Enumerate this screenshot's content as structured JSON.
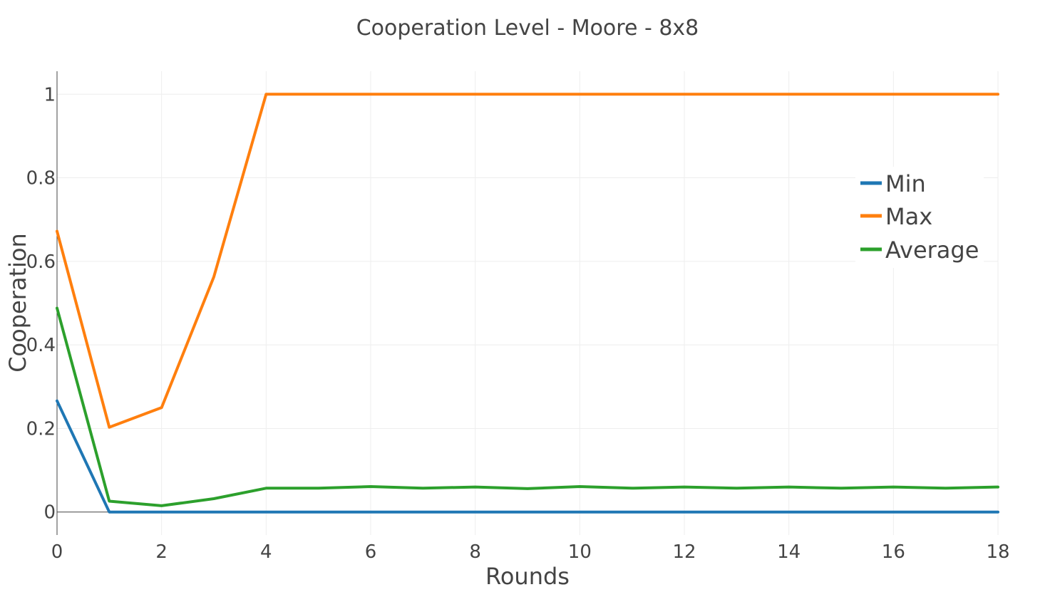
{
  "chart_data": {
    "type": "line",
    "title": "Cooperation Level - Moore - 8x8",
    "xlabel": "Rounds",
    "ylabel": "Cooperation",
    "x": [
      0,
      1,
      2,
      3,
      4,
      5,
      6,
      7,
      8,
      9,
      10,
      11,
      12,
      13,
      14,
      15,
      16,
      17,
      18
    ],
    "xlim": [
      0,
      18
    ],
    "ylim": [
      -0.055,
      1.055
    ],
    "x_ticks": [
      0,
      2,
      4,
      6,
      8,
      10,
      12,
      14,
      16,
      18
    ],
    "x_tick_labels": [
      "0",
      "2",
      "4",
      "6",
      "8",
      "10",
      "12",
      "14",
      "16",
      "18"
    ],
    "y_ticks": [
      0,
      0.2,
      0.4,
      0.6,
      0.8,
      1
    ],
    "y_tick_labels": [
      "0",
      "0.2",
      "0.4",
      "0.6",
      "0.8",
      "1"
    ],
    "grid": true,
    "legend_position": "right",
    "series": [
      {
        "name": "Min",
        "color": "#1f77b4",
        "values": [
          0.266,
          0,
          0,
          0,
          0,
          0,
          0,
          0,
          0,
          0,
          0,
          0,
          0,
          0,
          0,
          0,
          0,
          0,
          0
        ]
      },
      {
        "name": "Max",
        "color": "#ff7f0e",
        "values": [
          0.672,
          0.203,
          0.25,
          0.563,
          1,
          1,
          1,
          1,
          1,
          1,
          1,
          1,
          1,
          1,
          1,
          1,
          1,
          1,
          1
        ]
      },
      {
        "name": "Average",
        "color": "#2ca02c",
        "values": [
          0.488,
          0.026,
          0.015,
          0.032,
          0.057,
          0.057,
          0.061,
          0.057,
          0.06,
          0.056,
          0.061,
          0.057,
          0.06,
          0.057,
          0.06,
          0.057,
          0.06,
          0.057,
          0.06
        ]
      }
    ]
  }
}
